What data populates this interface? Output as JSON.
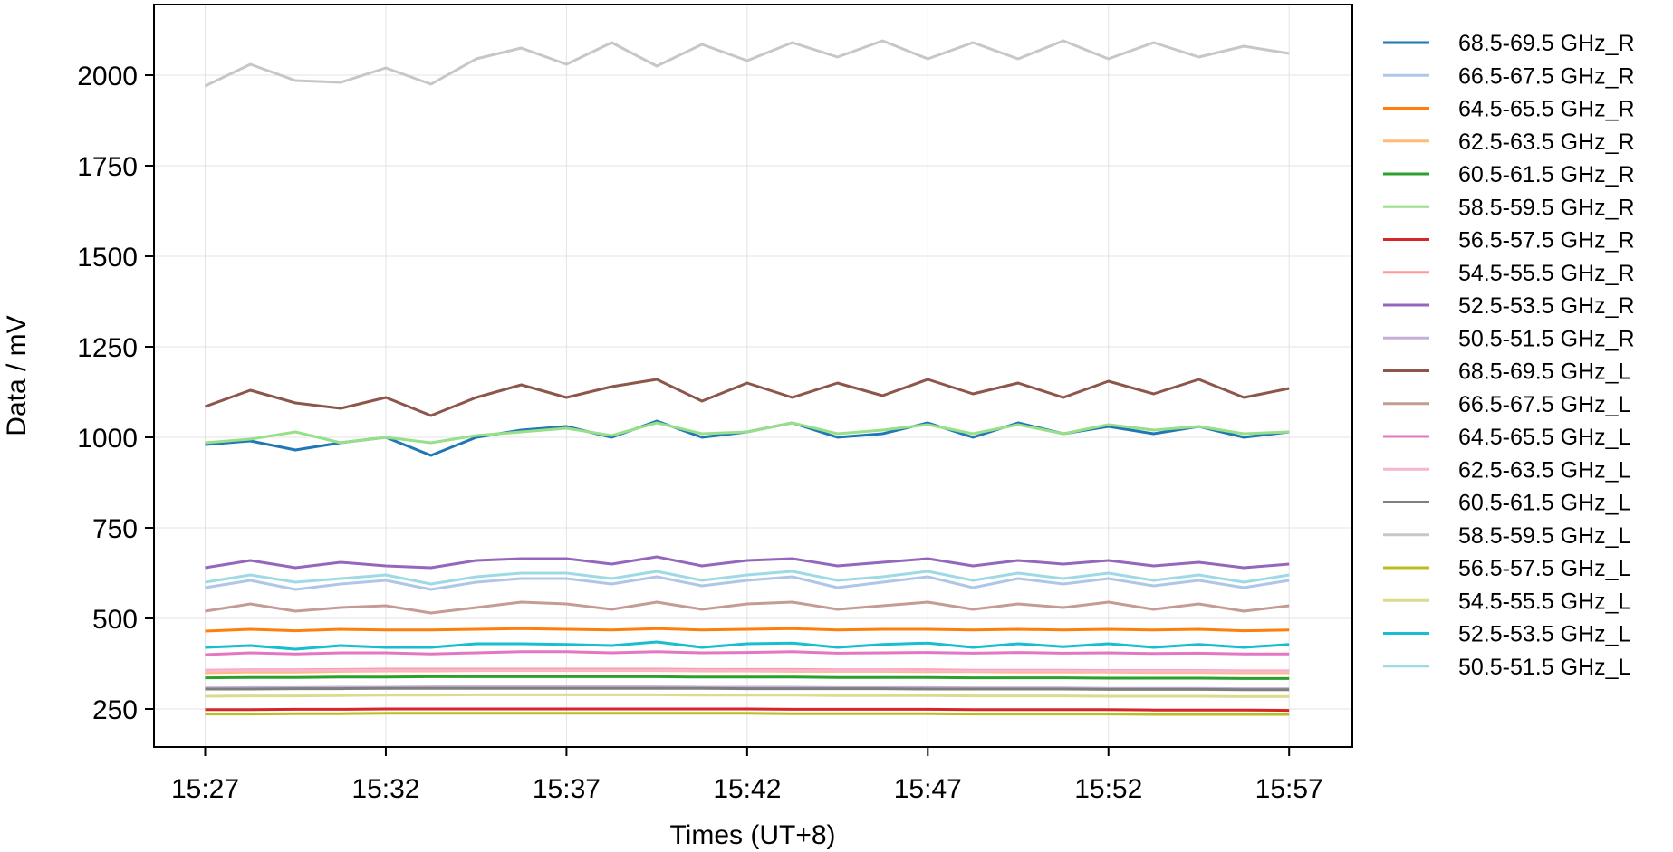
{
  "chart_data": {
    "type": "line",
    "title": "",
    "xlabel": "Times (UT+8)",
    "ylabel": "Data / mV",
    "x_ticks": [
      "15:27",
      "15:32",
      "15:37",
      "15:42",
      "15:47",
      "15:52",
      "15:57"
    ],
    "y_ticks": [
      250,
      500,
      750,
      1000,
      1250,
      1500,
      1750,
      2000
    ],
    "xlim": [
      "15:25:35",
      "15:58:45"
    ],
    "ylim": [
      145,
      2195
    ],
    "grid": true,
    "legend_position": "outside-right",
    "series": [
      {
        "name": "68.5-69.5 GHz_R",
        "color": "#1f77b4",
        "values": [
          980,
          990,
          965,
          985,
          1000,
          950,
          1000,
          1020,
          1030,
          1000,
          1045,
          1000,
          1015,
          1040,
          1000,
          1010,
          1040,
          1000,
          1040,
          1010,
          1030,
          1010,
          1030,
          1000,
          1015
        ]
      },
      {
        "name": "66.5-67.5 GHz_R",
        "color": "#aec7e8",
        "values": [
          585,
          605,
          580,
          595,
          605,
          580,
          600,
          610,
          610,
          595,
          615,
          590,
          605,
          615,
          585,
          600,
          615,
          585,
          610,
          595,
          610,
          590,
          605,
          585,
          605
        ]
      },
      {
        "name": "64.5-65.5 GHz_R",
        "color": "#ff7f0e",
        "values": [
          465,
          470,
          466,
          470,
          468,
          468,
          470,
          472,
          470,
          468,
          472,
          468,
          470,
          472,
          468,
          470,
          470,
          468,
          470,
          468,
          470,
          468,
          470,
          466,
          468
        ]
      },
      {
        "name": "62.5-63.5 GHz_R",
        "color": "#ffbb78",
        "values": [
          350,
          352,
          352,
          354,
          355,
          355,
          356,
          356,
          356,
          356,
          356,
          355,
          355,
          354,
          354,
          354,
          353,
          353,
          352,
          352,
          352,
          351,
          351,
          350,
          350
        ]
      },
      {
        "name": "60.5-61.5 GHz_R",
        "color": "#2ca02c",
        "values": [
          336,
          337,
          337,
          338,
          338,
          339,
          339,
          339,
          339,
          339,
          339,
          338,
          338,
          338,
          337,
          337,
          337,
          336,
          336,
          336,
          335,
          335,
          335,
          334,
          334
        ]
      },
      {
        "name": "58.5-59.5 GHz_R",
        "color": "#98df8a",
        "values": [
          985,
          995,
          1015,
          985,
          1000,
          985,
          1005,
          1015,
          1025,
          1005,
          1040,
          1010,
          1015,
          1040,
          1010,
          1020,
          1035,
          1010,
          1035,
          1010,
          1035,
          1020,
          1030,
          1010,
          1015
        ]
      },
      {
        "name": "56.5-57.5 GHz_R",
        "color": "#d62728",
        "values": [
          248,
          248,
          249,
          249,
          250,
          250,
          250,
          250,
          250,
          250,
          250,
          250,
          250,
          249,
          249,
          249,
          249,
          248,
          248,
          248,
          248,
          247,
          247,
          247,
          246
        ]
      },
      {
        "name": "54.5-55.5 GHz_R",
        "color": "#ff9896",
        "values": [
          357,
          358,
          358,
          359,
          360,
          360,
          360,
          360,
          360,
          360,
          360,
          359,
          359,
          359,
          358,
          358,
          358,
          357,
          357,
          357,
          356,
          356,
          356,
          355,
          355
        ]
      },
      {
        "name": "52.5-53.5 GHz_R",
        "color": "#9467bd",
        "values": [
          640,
          660,
          640,
          655,
          645,
          640,
          660,
          665,
          665,
          650,
          670,
          645,
          660,
          665,
          645,
          655,
          665,
          645,
          660,
          650,
          660,
          645,
          655,
          640,
          650
        ]
      },
      {
        "name": "50.5-51.5 GHz_R",
        "color": "#c5b0d5",
        "values": [
          308,
          309,
          309,
          310,
          310,
          311,
          311,
          311,
          311,
          311,
          311,
          310,
          310,
          310,
          309,
          309,
          309,
          308,
          308,
          308,
          307,
          307,
          307,
          306,
          306
        ]
      },
      {
        "name": "68.5-69.5 GHz_L",
        "color": "#8c564b",
        "values": [
          1085,
          1130,
          1095,
          1080,
          1110,
          1060,
          1110,
          1145,
          1110,
          1140,
          1160,
          1100,
          1150,
          1110,
          1150,
          1115,
          1160,
          1120,
          1150,
          1110,
          1155,
          1120,
          1160,
          1110,
          1135
        ]
      },
      {
        "name": "66.5-67.5 GHz_L",
        "color": "#c49c94",
        "values": [
          520,
          540,
          520,
          530,
          535,
          515,
          530,
          545,
          540,
          525,
          545,
          525,
          540,
          545,
          525,
          535,
          545,
          525,
          540,
          530,
          545,
          525,
          540,
          520,
          535
        ]
      },
      {
        "name": "64.5-65.5 GHz_L",
        "color": "#e377c2",
        "values": [
          400,
          405,
          402,
          405,
          405,
          402,
          405,
          408,
          408,
          405,
          408,
          405,
          406,
          408,
          404,
          405,
          406,
          404,
          406,
          404,
          405,
          403,
          404,
          402,
          402
        ]
      },
      {
        "name": "62.5-63.5 GHz_L",
        "color": "#f7b6d2",
        "values": [
          355,
          356,
          356,
          357,
          357,
          357,
          357,
          357,
          357,
          357,
          357,
          357,
          356,
          356,
          356,
          356,
          355,
          355,
          355,
          355,
          354,
          354,
          354,
          353,
          353
        ]
      },
      {
        "name": "60.5-61.5 GHz_L",
        "color": "#7f7f7f",
        "values": [
          305,
          305,
          306,
          306,
          307,
          307,
          307,
          307,
          307,
          307,
          307,
          307,
          306,
          306,
          306,
          306,
          305,
          305,
          305,
          305,
          304,
          304,
          304,
          303,
          303
        ]
      },
      {
        "name": "58.5-59.5 GHz_L",
        "color": "#c7c7c7",
        "values": [
          1970,
          2030,
          1985,
          1980,
          2020,
          1975,
          2045,
          2075,
          2030,
          2090,
          2025,
          2085,
          2040,
          2090,
          2050,
          2095,
          2045,
          2090,
          2045,
          2095,
          2045,
          2090,
          2050,
          2080,
          2060
        ]
      },
      {
        "name": "56.5-57.5 GHz_L",
        "color": "#bcbd22",
        "values": [
          236,
          236,
          237,
          237,
          238,
          238,
          238,
          238,
          238,
          238,
          238,
          238,
          238,
          237,
          237,
          237,
          237,
          236,
          236,
          236,
          236,
          235,
          235,
          235,
          235
        ]
      },
      {
        "name": "54.5-55.5 GHz_L",
        "color": "#dbdb8d",
        "values": [
          285,
          286,
          286,
          287,
          288,
          288,
          289,
          289,
          289,
          289,
          289,
          288,
          288,
          288,
          287,
          287,
          287,
          286,
          286,
          286,
          285,
          285,
          285,
          284,
          284
        ]
      },
      {
        "name": "52.5-53.5 GHz_L",
        "color": "#17becf",
        "values": [
          420,
          425,
          415,
          425,
          420,
          420,
          430,
          430,
          428,
          425,
          435,
          420,
          430,
          432,
          420,
          428,
          432,
          420,
          430,
          422,
          430,
          420,
          428,
          420,
          428
        ]
      },
      {
        "name": "50.5-51.5 GHz_L",
        "color": "#9edae5",
        "values": [
          600,
          620,
          600,
          610,
          620,
          595,
          615,
          625,
          625,
          610,
          630,
          605,
          620,
          630,
          605,
          615,
          630,
          605,
          625,
          610,
          625,
          605,
          620,
          600,
          620
        ]
      }
    ]
  }
}
